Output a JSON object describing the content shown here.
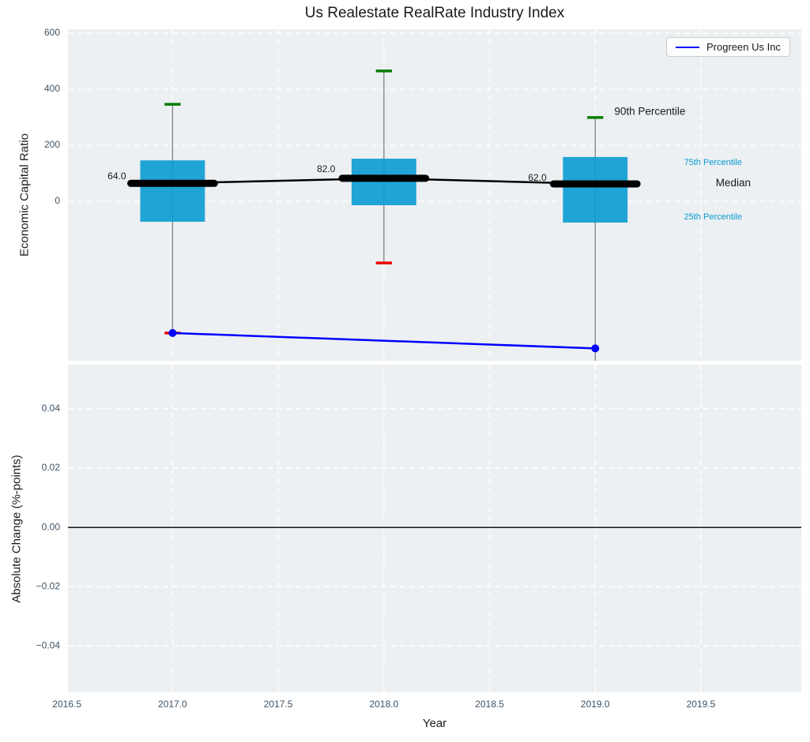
{
  "figure": {
    "background": "#ffffff",
    "plot_background": "#ecf0f2",
    "grid_color": "#ffffff",
    "tick_label_color": "#3e5263"
  },
  "legend": {
    "label": "Progreen Us Inc",
    "line_color": "#0000ff",
    "position": "top-right"
  },
  "chart_data": [
    {
      "type": "box",
      "title": "Us Realestate RealRate Industry Index",
      "ylabel": "Economic Capital Ratio",
      "xlim": [
        2016.505,
        2019.975
      ],
      "ylim": [
        -569,
        614
      ],
      "ytick_values": [
        0,
        200,
        400,
        600
      ],
      "ytick_labels": [
        "0",
        "200",
        "400",
        "600"
      ],
      "grid": true,
      "box_color": "#0a9bd2",
      "box_opacity": 0.9,
      "whisker_color": "#808080",
      "cap_high_color": "#007d00",
      "cap_low_color": "#ea0606",
      "median_color": "#000000",
      "box_halfwidth": 0.153,
      "cap_halfwidth": 0.038,
      "boxes": [
        {
          "x": 2017.0,
          "p90": 346,
          "p75": 146,
          "median": 64.0,
          "p25": -73,
          "p10": -470
        },
        {
          "x": 2018.0,
          "p90": 465,
          "p75": 152,
          "median": 82.0,
          "p25": -14,
          "p10": -220
        },
        {
          "x": 2019.0,
          "p90": 299,
          "p75": 158,
          "median": 62.0,
          "p25": -76,
          "p10": -600
        }
      ],
      "median_value_labels": [
        {
          "text": "64.0",
          "x": 2016.78,
          "y": 88
        },
        {
          "text": "82.0",
          "x": 2017.77,
          "y": 113
        },
        {
          "text": "62.0",
          "x": 2018.77,
          "y": 82
        }
      ],
      "series": [
        {
          "name": "Progreen Us Inc",
          "x": [
            2017.0,
            2019.0
          ],
          "y": [
            -470,
            -525
          ],
          "color": "#0000ff",
          "marker": "circle",
          "marker_size": 5,
          "line_width": 2.5
        }
      ],
      "annotations": [
        {
          "text": "90th Percentile",
          "x": 2019.09,
          "y": 318,
          "color": "#1a1a1a",
          "size": 13.5,
          "anchor": "start"
        },
        {
          "text": "75th Percentile",
          "x": 2019.42,
          "y": 138,
          "color": "#0a9bd2",
          "size": 11,
          "anchor": "start"
        },
        {
          "text": "Median",
          "x": 2019.57,
          "y": 64,
          "color": "#1a1a1a",
          "size": 13.5,
          "anchor": "start"
        },
        {
          "text": "25th Percentile",
          "x": 2019.42,
          "y": -56,
          "color": "#0a9bd2",
          "size": 11,
          "anchor": "start"
        }
      ],
      "legend_entries": [
        "Progreen Us Inc"
      ]
    },
    {
      "type": "line",
      "ylabel": "Absolute Change (%-points)",
      "xlabel": "Year",
      "xlim": [
        2016.505,
        2019.975
      ],
      "ylim": [
        -0.0556,
        0.0549
      ],
      "ytick_values": [
        -0.04,
        -0.02,
        0.0,
        0.02,
        0.04
      ],
      "ytick_labels": [
        "−0.04",
        "−0.02",
        "0.00",
        "0.02",
        "0.04"
      ],
      "xtick_values": [
        2016.5,
        2017.0,
        2017.5,
        2018.0,
        2018.5,
        2019.0,
        2019.5
      ],
      "xtick_labels": [
        "2016.5",
        "2017.0",
        "2017.5",
        "2018.0",
        "2018.5",
        "2019.0",
        "2019.5"
      ],
      "grid": true,
      "zero_line": {
        "y": 0.0,
        "color": "#000000",
        "width": 1.4
      },
      "series": []
    }
  ]
}
